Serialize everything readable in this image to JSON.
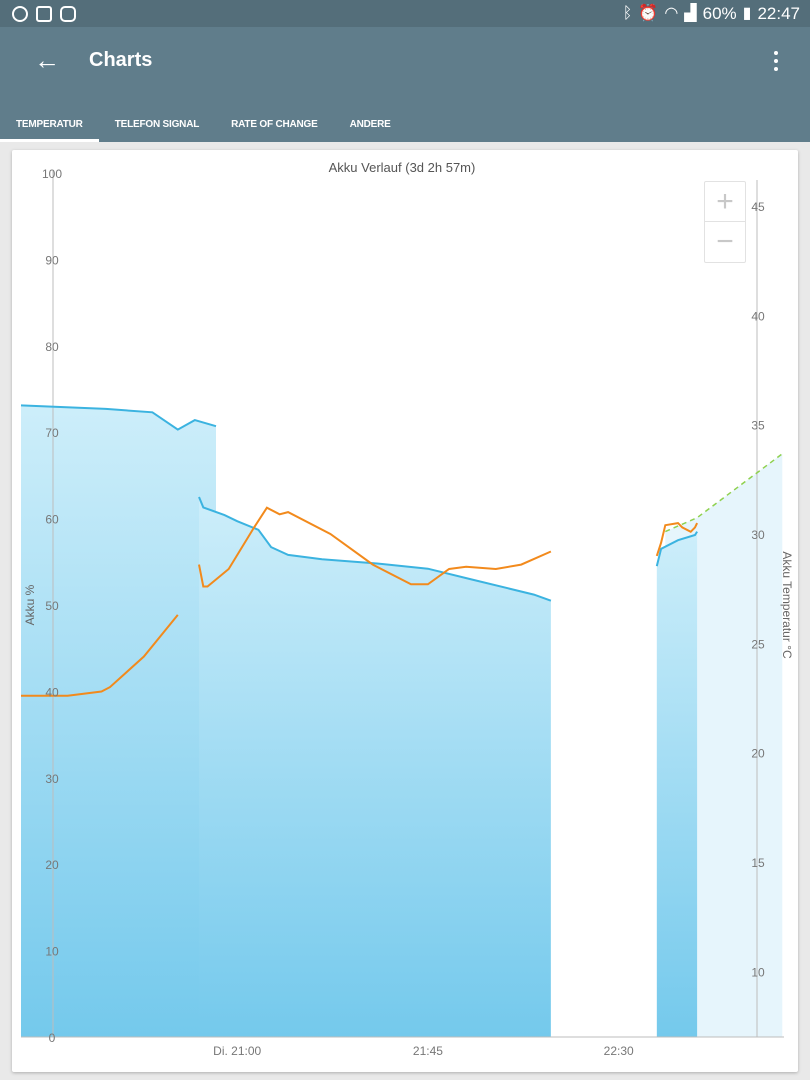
{
  "status_bar": {
    "battery": "60%",
    "time": "22:47",
    "left_icons": [
      "app-icon",
      "gallery-icon",
      "app-icon-2"
    ],
    "right_icons": [
      "bluetooth-icon",
      "alarm-icon",
      "wifi-icon",
      "signal-icon",
      "battery-icon"
    ]
  },
  "app_bar": {
    "title": "Charts",
    "back_icon": "arrow-back-icon",
    "menu_icon": "more-vert-icon"
  },
  "tabs": [
    {
      "label": "TEMPERATUR",
      "active": true
    },
    {
      "label": "TELEFON SIGNAL",
      "active": false
    },
    {
      "label": "RATE OF CHANGE",
      "active": false
    },
    {
      "label": "ANDERE",
      "active": false
    }
  ],
  "zoom": {
    "plus": "+",
    "minus": "−"
  },
  "colors": {
    "primary": "#607d8b",
    "primary_dark": "#546e7a",
    "battery_line": "#3bb3e0",
    "temp_line": "#f28a1c",
    "projection": "#8fd14f"
  },
  "chart_data": {
    "type": "area",
    "title": "Akku Verlauf (3d 2h 57m)",
    "y_left": {
      "label": "Akku %",
      "ticks": [
        "0",
        "10",
        "20",
        "30",
        "40",
        "50",
        "60",
        "70",
        "80",
        "90",
        "100"
      ],
      "range": [
        0,
        100
      ]
    },
    "y_right": {
      "label": "Akku Temperatur °C",
      "ticks": [
        "10",
        "15",
        "20",
        "25",
        "30",
        "35",
        "40",
        "45"
      ],
      "range": [
        7,
        45.5
      ]
    },
    "x_ticks": [
      "Di. 21:00",
      "21:45",
      "22:30"
    ],
    "x_ticks_minutes": [
      0,
      45,
      90
    ],
    "x_range_minutes": [
      -51,
      129
    ],
    "series": [
      {
        "kind": "battery",
        "segments": [
          [
            [
              -51,
              73.1
            ],
            [
              -31,
              72.7
            ],
            [
              -20,
              72.3
            ],
            [
              -10,
              71.4
            ],
            [
              -5,
              70.7
            ],
            [
              -14,
              70.3
            ]
          ],
          [
            [
              -9,
              62.5
            ],
            [
              -8,
              61.3
            ],
            [
              -3,
              60.4
            ],
            [
              0,
              59.7
            ],
            [
              5,
              58.7
            ],
            [
              8,
              56.7
            ],
            [
              12,
              55.8
            ],
            [
              20,
              55.3
            ],
            [
              33,
              54.8
            ],
            [
              45,
              54.2
            ],
            [
              55,
              53.0
            ],
            [
              70,
              51.2
            ],
            [
              74,
              50.5
            ]
          ],
          [
            [
              99,
              54.5
            ],
            [
              100,
              56.5
            ],
            [
              104,
              57.5
            ],
            [
              108,
              58.1
            ],
            [
              108.5,
              58.5
            ]
          ]
        ]
      },
      {
        "kind": "temperature",
        "segments": [
          [
            [
              -51,
              22.6
            ],
            [
              -40,
              22.6
            ],
            [
              -32,
              22.8
            ],
            [
              -30,
              23.0
            ],
            [
              -22,
              24.4
            ],
            [
              -14,
              26.3
            ]
          ],
          [
            [
              -9,
              28.6
            ],
            [
              -8,
              27.6
            ],
            [
              -7,
              27.6
            ],
            [
              -2,
              28.4
            ],
            [
              4,
              30.3
            ],
            [
              7,
              31.2
            ],
            [
              10,
              30.9
            ],
            [
              12,
              31.0
            ],
            [
              22,
              30.0
            ],
            [
              32,
              28.6
            ],
            [
              41,
              27.7
            ],
            [
              45,
              27.7
            ],
            [
              50,
              28.4
            ],
            [
              54,
              28.5
            ],
            [
              61,
              28.4
            ],
            [
              67,
              28.6
            ],
            [
              74,
              29.2
            ]
          ],
          [
            [
              99,
              29.0
            ],
            [
              100,
              29.6
            ],
            [
              101,
              30.4
            ],
            [
              104,
              30.5
            ],
            [
              105,
              30.3
            ],
            [
              107,
              30.1
            ],
            [
              108,
              30.3
            ],
            [
              108.5,
              30.5
            ]
          ]
        ]
      },
      {
        "kind": "projection",
        "points": [
          [
            101,
            58.5
          ],
          [
            108.5,
            60.1
          ],
          [
            128.6,
            67.5
          ]
        ]
      }
    ]
  }
}
